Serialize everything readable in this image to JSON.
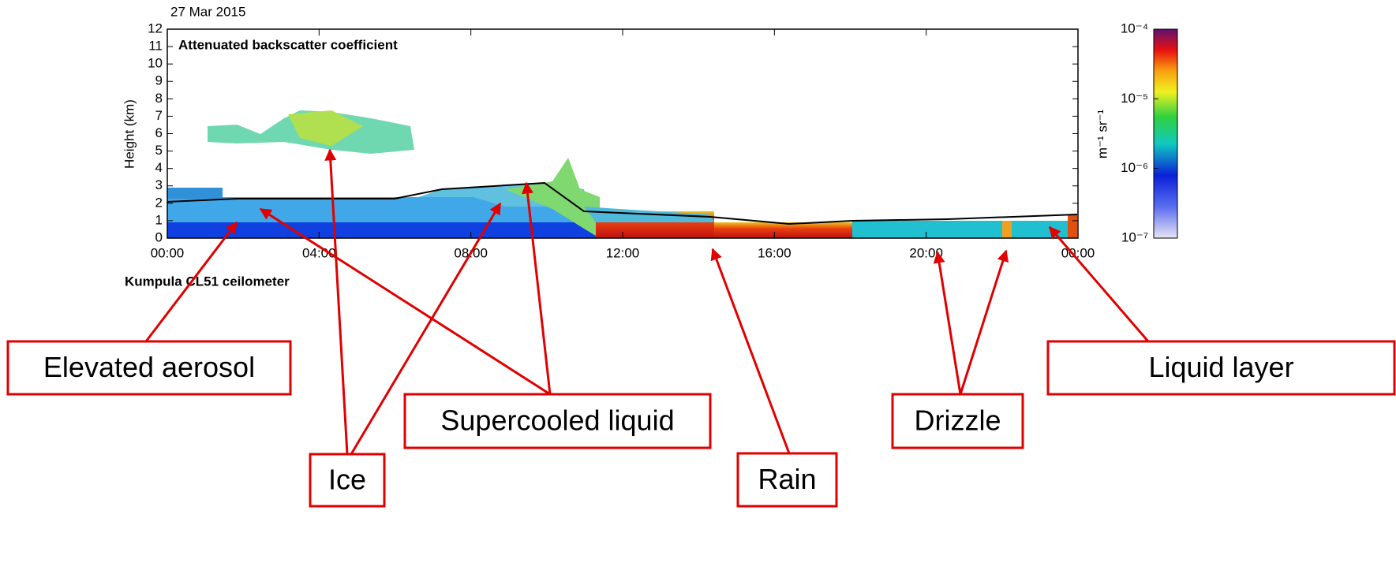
{
  "chart_data": {
    "type": "heatmap",
    "date": "27 Mar 2015",
    "title": "Attenuated backscatter coefficient",
    "ylabel": "Height (km)",
    "footer": "Kumpula CL51 ceilometer",
    "xlim": [
      0,
      24
    ],
    "xticks": [
      {
        "value": 0,
        "label": "00:00"
      },
      {
        "value": 4,
        "label": "04:00"
      },
      {
        "value": 8,
        "label": "08:00"
      },
      {
        "value": 12,
        "label": "12:00"
      },
      {
        "value": 16,
        "label": "16:00"
      },
      {
        "value": 20,
        "label": "20:00"
      },
      {
        "value": 24,
        "label": "00:00"
      }
    ],
    "ylim": [
      0,
      12
    ],
    "yticks": [
      0,
      1,
      2,
      3,
      4,
      5,
      6,
      7,
      8,
      9,
      10,
      11,
      12
    ],
    "colorbar": {
      "log": true,
      "lim": [
        1e-07,
        0.0001
      ],
      "label": "m⁻¹ sr⁻¹",
      "ticks": [
        {
          "value": 0.0001,
          "label": "10⁻⁴"
        },
        {
          "value": 1e-05,
          "label": "10⁻⁵"
        },
        {
          "value": 1e-06,
          "label": "10⁻⁶"
        },
        {
          "value": 1e-07,
          "label": "10⁻⁷"
        }
      ]
    },
    "annotations": [
      "Elevated aerosol",
      "Supercooled liquid",
      "Ice",
      "Rain",
      "Drizzle",
      "Liquid layer"
    ]
  }
}
